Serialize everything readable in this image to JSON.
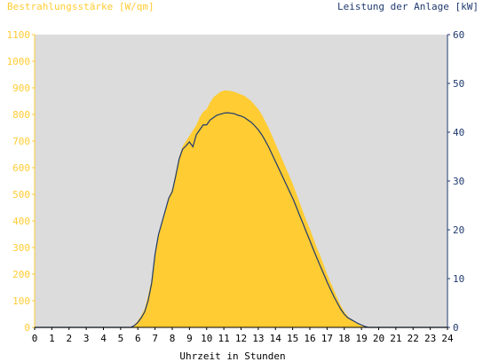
{
  "chart_data": {
    "type": "area",
    "left_axis_title": "Bestrahlungsstärke [W/qm]",
    "right_axis_title": "Leistung der Anlage [kW]",
    "xlabel": "Uhrzeit in Stunden",
    "x_ticks": [
      "0",
      "1",
      "2",
      "3",
      "4",
      "5",
      "6",
      "7",
      "8",
      "9",
      "10",
      "11",
      "12",
      "13",
      "14",
      "15",
      "16",
      "17",
      "18",
      "19",
      "20",
      "21",
      "22",
      "23",
      "24"
    ],
    "y_left_ticks": [
      "0",
      "100",
      "200",
      "300",
      "400",
      "500",
      "600",
      "700",
      "800",
      "900",
      "1000",
      "1100"
    ],
    "y_right_ticks": [
      "0",
      "10",
      "20",
      "30",
      "40",
      "50",
      "60"
    ],
    "xlim": [
      0,
      24
    ],
    "ylim_left": [
      0,
      1100
    ],
    "ylim_right": [
      0,
      60
    ],
    "grid": false,
    "colors": {
      "irradiance": "#ffcc33",
      "power": "#1f3a6e",
      "left_axis_text": "#ffcc33",
      "right_axis_text": "#1f3a6e",
      "plot_bg": "#dcdcdc"
    },
    "series": [
      {
        "kind": "area",
        "axis": "left",
        "x": [
          0,
          5.6,
          5.8,
          6.0,
          6.2,
          6.4,
          6.6,
          6.8,
          7.0,
          7.2,
          7.4,
          7.6,
          7.8,
          8.0,
          8.2,
          8.4,
          8.6,
          8.8,
          9.0,
          9.2,
          9.4,
          9.6,
          9.8,
          10.0,
          10.2,
          10.4,
          10.6,
          10.8,
          11.0,
          11.2,
          11.4,
          11.6,
          11.8,
          12.0,
          12.2,
          12.4,
          12.6,
          12.8,
          13.0,
          13.2,
          13.4,
          13.6,
          13.8,
          14.0,
          14.2,
          14.4,
          14.6,
          14.8,
          15.0,
          15.2,
          15.4,
          15.6,
          15.8,
          16.0,
          16.2,
          16.4,
          16.6,
          16.8,
          17.0,
          17.2,
          17.4,
          17.6,
          17.8,
          18.0,
          18.2,
          18.4,
          18.6,
          18.8,
          19.0,
          19.2,
          19.4,
          19.6,
          24
        ],
        "values": [
          0,
          0,
          10,
          25,
          45,
          70,
          120,
          180,
          280,
          350,
          400,
          440,
          490,
          520,
          580,
          640,
          680,
          700,
          720,
          740,
          760,
          790,
          810,
          820,
          845,
          865,
          875,
          885,
          890,
          890,
          888,
          885,
          880,
          875,
          870,
          860,
          850,
          835,
          820,
          800,
          775,
          750,
          720,
          690,
          660,
          630,
          600,
          570,
          540,
          505,
          470,
          435,
          400,
          370,
          335,
          300,
          270,
          235,
          200,
          170,
          140,
          110,
          82,
          60,
          42,
          30,
          20,
          12,
          7,
          3,
          0,
          0,
          0
        ]
      },
      {
        "kind": "line",
        "axis": "right",
        "x": [
          0,
          5.6,
          5.8,
          6.0,
          6.2,
          6.4,
          6.6,
          6.8,
          7.0,
          7.2,
          7.4,
          7.6,
          7.8,
          8.0,
          8.2,
          8.4,
          8.6,
          8.8,
          9.0,
          9.2,
          9.4,
          9.6,
          9.8,
          10.0,
          10.2,
          10.4,
          10.6,
          10.8,
          11.0,
          11.2,
          11.4,
          11.6,
          11.8,
          12.0,
          12.2,
          12.4,
          12.6,
          12.8,
          13.0,
          13.2,
          13.4,
          13.6,
          13.8,
          14.0,
          14.2,
          14.4,
          14.6,
          14.8,
          15.0,
          15.2,
          15.4,
          15.6,
          15.8,
          16.0,
          16.2,
          16.4,
          16.6,
          16.8,
          17.0,
          17.2,
          17.4,
          17.6,
          17.8,
          18.0,
          18.2,
          18.4,
          18.6,
          18.8,
          19.0,
          19.2,
          19.4,
          19.6,
          24
        ],
        "values": [
          0,
          0,
          0.4,
          1.0,
          2.0,
          3.2,
          5.5,
          9.0,
          15.0,
          19.0,
          21.5,
          24.0,
          26.5,
          27.8,
          31.0,
          34.5,
          36.5,
          37.2,
          38.0,
          37.0,
          39.5,
          40.5,
          41.5,
          41.5,
          42.5,
          43.0,
          43.5,
          43.7,
          43.9,
          44.0,
          43.9,
          43.8,
          43.5,
          43.3,
          43.0,
          42.5,
          42.0,
          41.3,
          40.5,
          39.5,
          38.3,
          37.0,
          35.5,
          34.0,
          32.5,
          31.0,
          29.5,
          28.0,
          26.5,
          24.8,
          23.0,
          21.3,
          19.5,
          17.8,
          16.0,
          14.3,
          12.6,
          11.0,
          9.3,
          7.8,
          6.3,
          5.0,
          3.7,
          2.7,
          2.0,
          1.6,
          1.2,
          0.8,
          0.5,
          0.2,
          0,
          0,
          0
        ]
      }
    ]
  }
}
